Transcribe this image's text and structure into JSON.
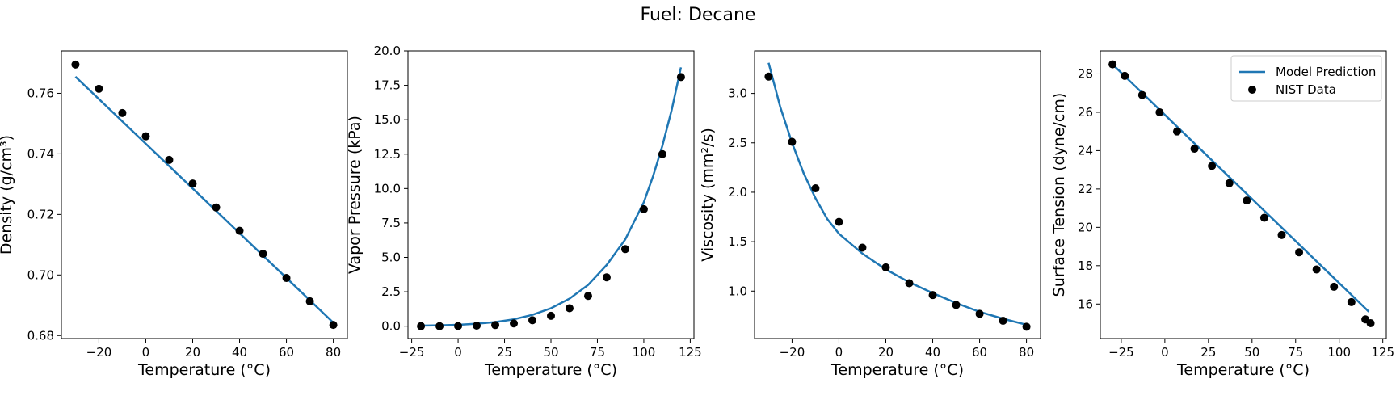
{
  "figure": {
    "suptitle": "Fuel: Decane"
  },
  "colors": {
    "model_line": "#1f77b4",
    "nist_points": "#000000"
  },
  "legend": {
    "model_label": "Model Prediction",
    "nist_label": "NIST Data",
    "location": "upper right of fourth panel"
  },
  "chart_data": [
    {
      "type": "line+scatter",
      "xlabel": "Temperature (°C)",
      "ylabel": "Density (g/cm³)",
      "xlim": [
        -36,
        86
      ],
      "ylim": [
        0.679,
        0.774
      ],
      "xticks": [
        -20,
        0,
        20,
        40,
        60,
        80
      ],
      "yticks": [
        0.68,
        0.7,
        0.72,
        0.74,
        0.76
      ],
      "tick_decimals": 2,
      "model": {
        "x": [
          -30,
          81
        ],
        "y": [
          0.7655,
          0.6835
        ]
      },
      "nist": {
        "x": [
          -30,
          -20,
          -10,
          0,
          10,
          20,
          30,
          40,
          50,
          60,
          70,
          80
        ],
        "y": [
          0.7695,
          0.7615,
          0.7535,
          0.7458,
          0.738,
          0.7302,
          0.7223,
          0.7146,
          0.707,
          0.699,
          0.6913,
          0.6835
        ]
      }
    },
    {
      "type": "line+scatter",
      "xlabel": "Temperature (°C)",
      "ylabel": "Vapor Pressure (kPa)",
      "xlim": [
        -27,
        127
      ],
      "ylim": [
        -0.9,
        20
      ],
      "xticks": [
        -25,
        0,
        25,
        50,
        75,
        100,
        125
      ],
      "yticks": [
        0.0,
        2.5,
        5.0,
        7.5,
        10.0,
        12.5,
        15.0,
        17.5,
        20.0
      ],
      "tick_decimals": 1,
      "model": {
        "x": [
          -20,
          -10,
          0,
          10,
          20,
          30,
          40,
          50,
          60,
          70,
          80,
          90,
          100,
          105,
          110,
          115,
          120
        ],
        "y": [
          0.04,
          0.06,
          0.1,
          0.18,
          0.3,
          0.5,
          0.82,
          1.3,
          2.0,
          3.0,
          4.45,
          6.3,
          9.0,
          10.9,
          13.1,
          15.7,
          18.8
        ]
      },
      "nist": {
        "x": [
          -20,
          -10,
          0,
          10,
          20,
          30,
          40,
          50,
          60,
          70,
          80,
          90,
          100,
          110,
          120
        ],
        "y": [
          0.0,
          0.0,
          0.01,
          0.04,
          0.08,
          0.2,
          0.43,
          0.75,
          1.3,
          2.2,
          3.55,
          5.6,
          8.5,
          12.5,
          18.1
        ]
      }
    },
    {
      "type": "line+scatter",
      "xlabel": "Temperature (°C)",
      "ylabel": "Viscosity (mm²/s)",
      "xlim": [
        -36,
        86
      ],
      "ylim": [
        0.52,
        3.43
      ],
      "xticks": [
        -20,
        0,
        20,
        40,
        60,
        80
      ],
      "yticks": [
        1.0,
        1.5,
        2.0,
        2.5,
        3.0
      ],
      "tick_decimals": 1,
      "model": {
        "x": [
          -30,
          -25,
          -20,
          -15,
          -10,
          -5,
          0,
          10,
          20,
          30,
          40,
          50,
          60,
          70,
          80
        ],
        "y": [
          3.31,
          2.86,
          2.5,
          2.19,
          1.94,
          1.73,
          1.58,
          1.38,
          1.22,
          1.09,
          0.98,
          0.88,
          0.79,
          0.72,
          0.66
        ]
      },
      "nist": {
        "x": [
          -30,
          -20,
          -10,
          0,
          10,
          20,
          30,
          40,
          50,
          60,
          70,
          80
        ],
        "y": [
          3.17,
          2.51,
          2.04,
          1.7,
          1.44,
          1.24,
          1.08,
          0.96,
          0.86,
          0.77,
          0.7,
          0.64
        ]
      }
    },
    {
      "type": "line+scatter",
      "xlabel": "Temperature (°C)",
      "ylabel": "Surface Tension (dyne/cm)",
      "xlim": [
        -37,
        127
      ],
      "ylim": [
        14.2,
        29.2
      ],
      "xticks": [
        -25,
        0,
        25,
        50,
        75,
        100,
        125
      ],
      "yticks": [
        16,
        18,
        20,
        22,
        24,
        26,
        28
      ],
      "tick_decimals": 0,
      "model": {
        "x": [
          -30,
          117
        ],
        "y": [
          28.5,
          15.6
        ]
      },
      "nist": {
        "x": [
          -30,
          -23,
          -13,
          -3,
          7,
          17,
          27,
          37,
          47,
          57,
          67,
          77,
          87,
          97,
          107,
          115,
          118
        ],
        "y": [
          28.5,
          27.9,
          26.9,
          26.0,
          25.0,
          24.1,
          23.2,
          22.3,
          21.4,
          20.5,
          19.6,
          18.7,
          17.8,
          16.9,
          16.1,
          15.2,
          15.0
        ]
      }
    }
  ]
}
